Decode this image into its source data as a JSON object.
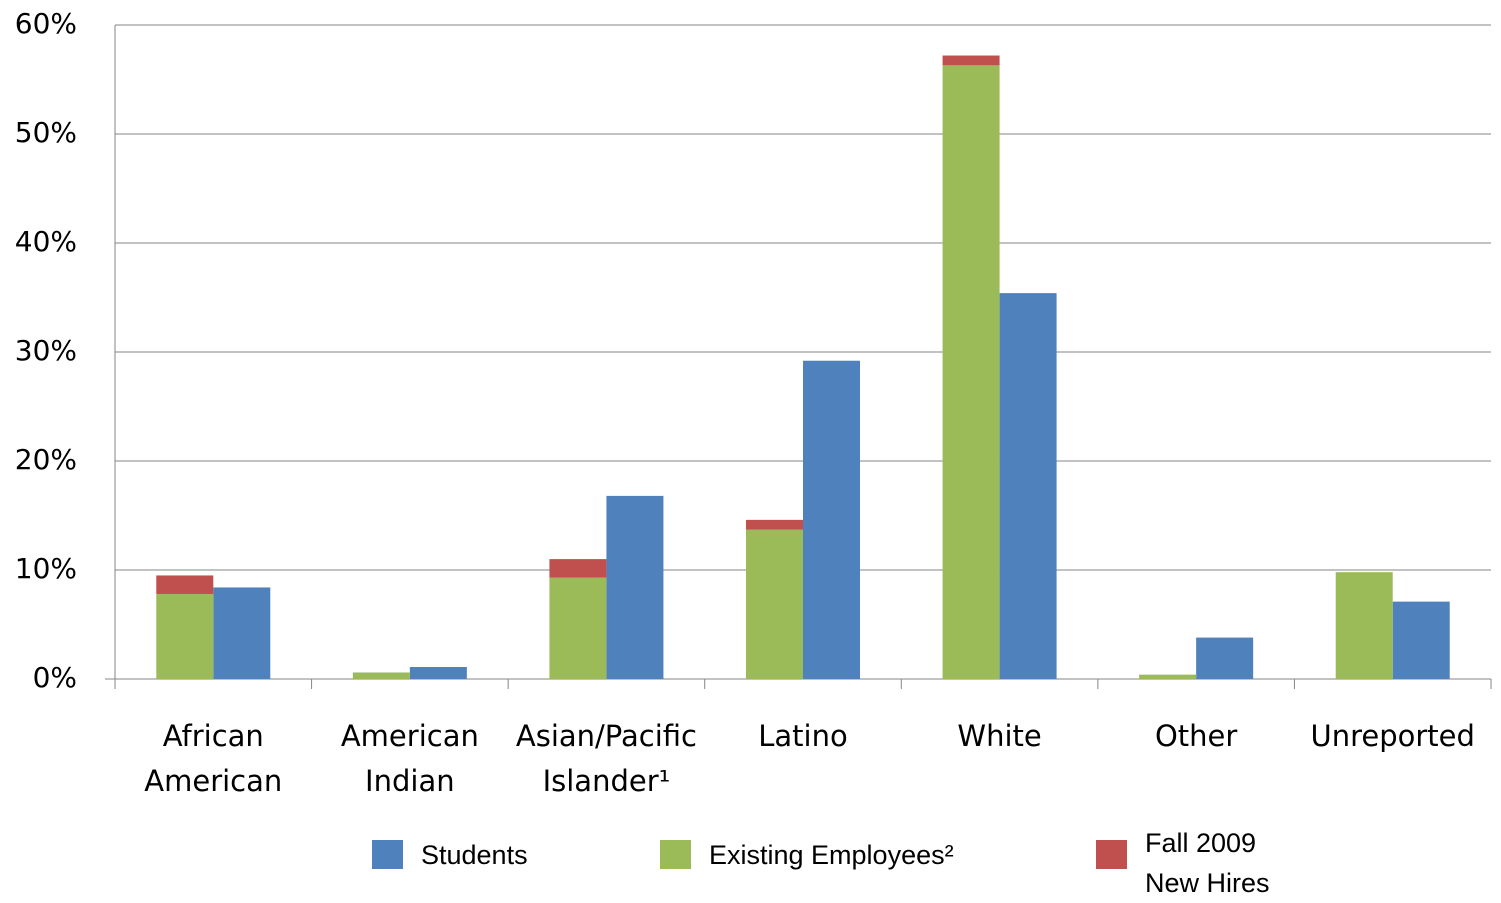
{
  "chart_data": {
    "type": "bar",
    "categories": [
      "African\nAmerican",
      "American\nIndian",
      "Asian/Pacific\nIslander¹",
      "Latino",
      "White",
      "Other",
      "Unreported"
    ],
    "series": [
      {
        "name": "Students",
        "color": "#4f81bd",
        "values": [
          8.4,
          1.1,
          16.8,
          29.2,
          35.4,
          3.8,
          7.1
        ]
      },
      {
        "name": "Existing Employees²",
        "color": "#9bbb59",
        "stacked": true,
        "values": [
          7.8,
          0.6,
          9.3,
          13.7,
          56.3,
          0.4,
          9.8
        ]
      },
      {
        "name": "Fall 2009\nNew Hires",
        "color": "#c0504d",
        "stacked": true,
        "values": [
          1.7,
          0,
          1.7,
          0.9,
          0.9,
          0,
          0
        ]
      }
    ],
    "ylim": [
      0,
      60
    ],
    "yticks": [
      {
        "value": 0,
        "label": "0%"
      },
      {
        "value": 10,
        "label": "10%"
      },
      {
        "value": 20,
        "label": "20%"
      },
      {
        "value": 30,
        "label": "30%"
      },
      {
        "value": 40,
        "label": "40%"
      },
      {
        "value": 50,
        "label": "50%"
      },
      {
        "value": 60,
        "label": "60%"
      }
    ],
    "grid": true
  }
}
